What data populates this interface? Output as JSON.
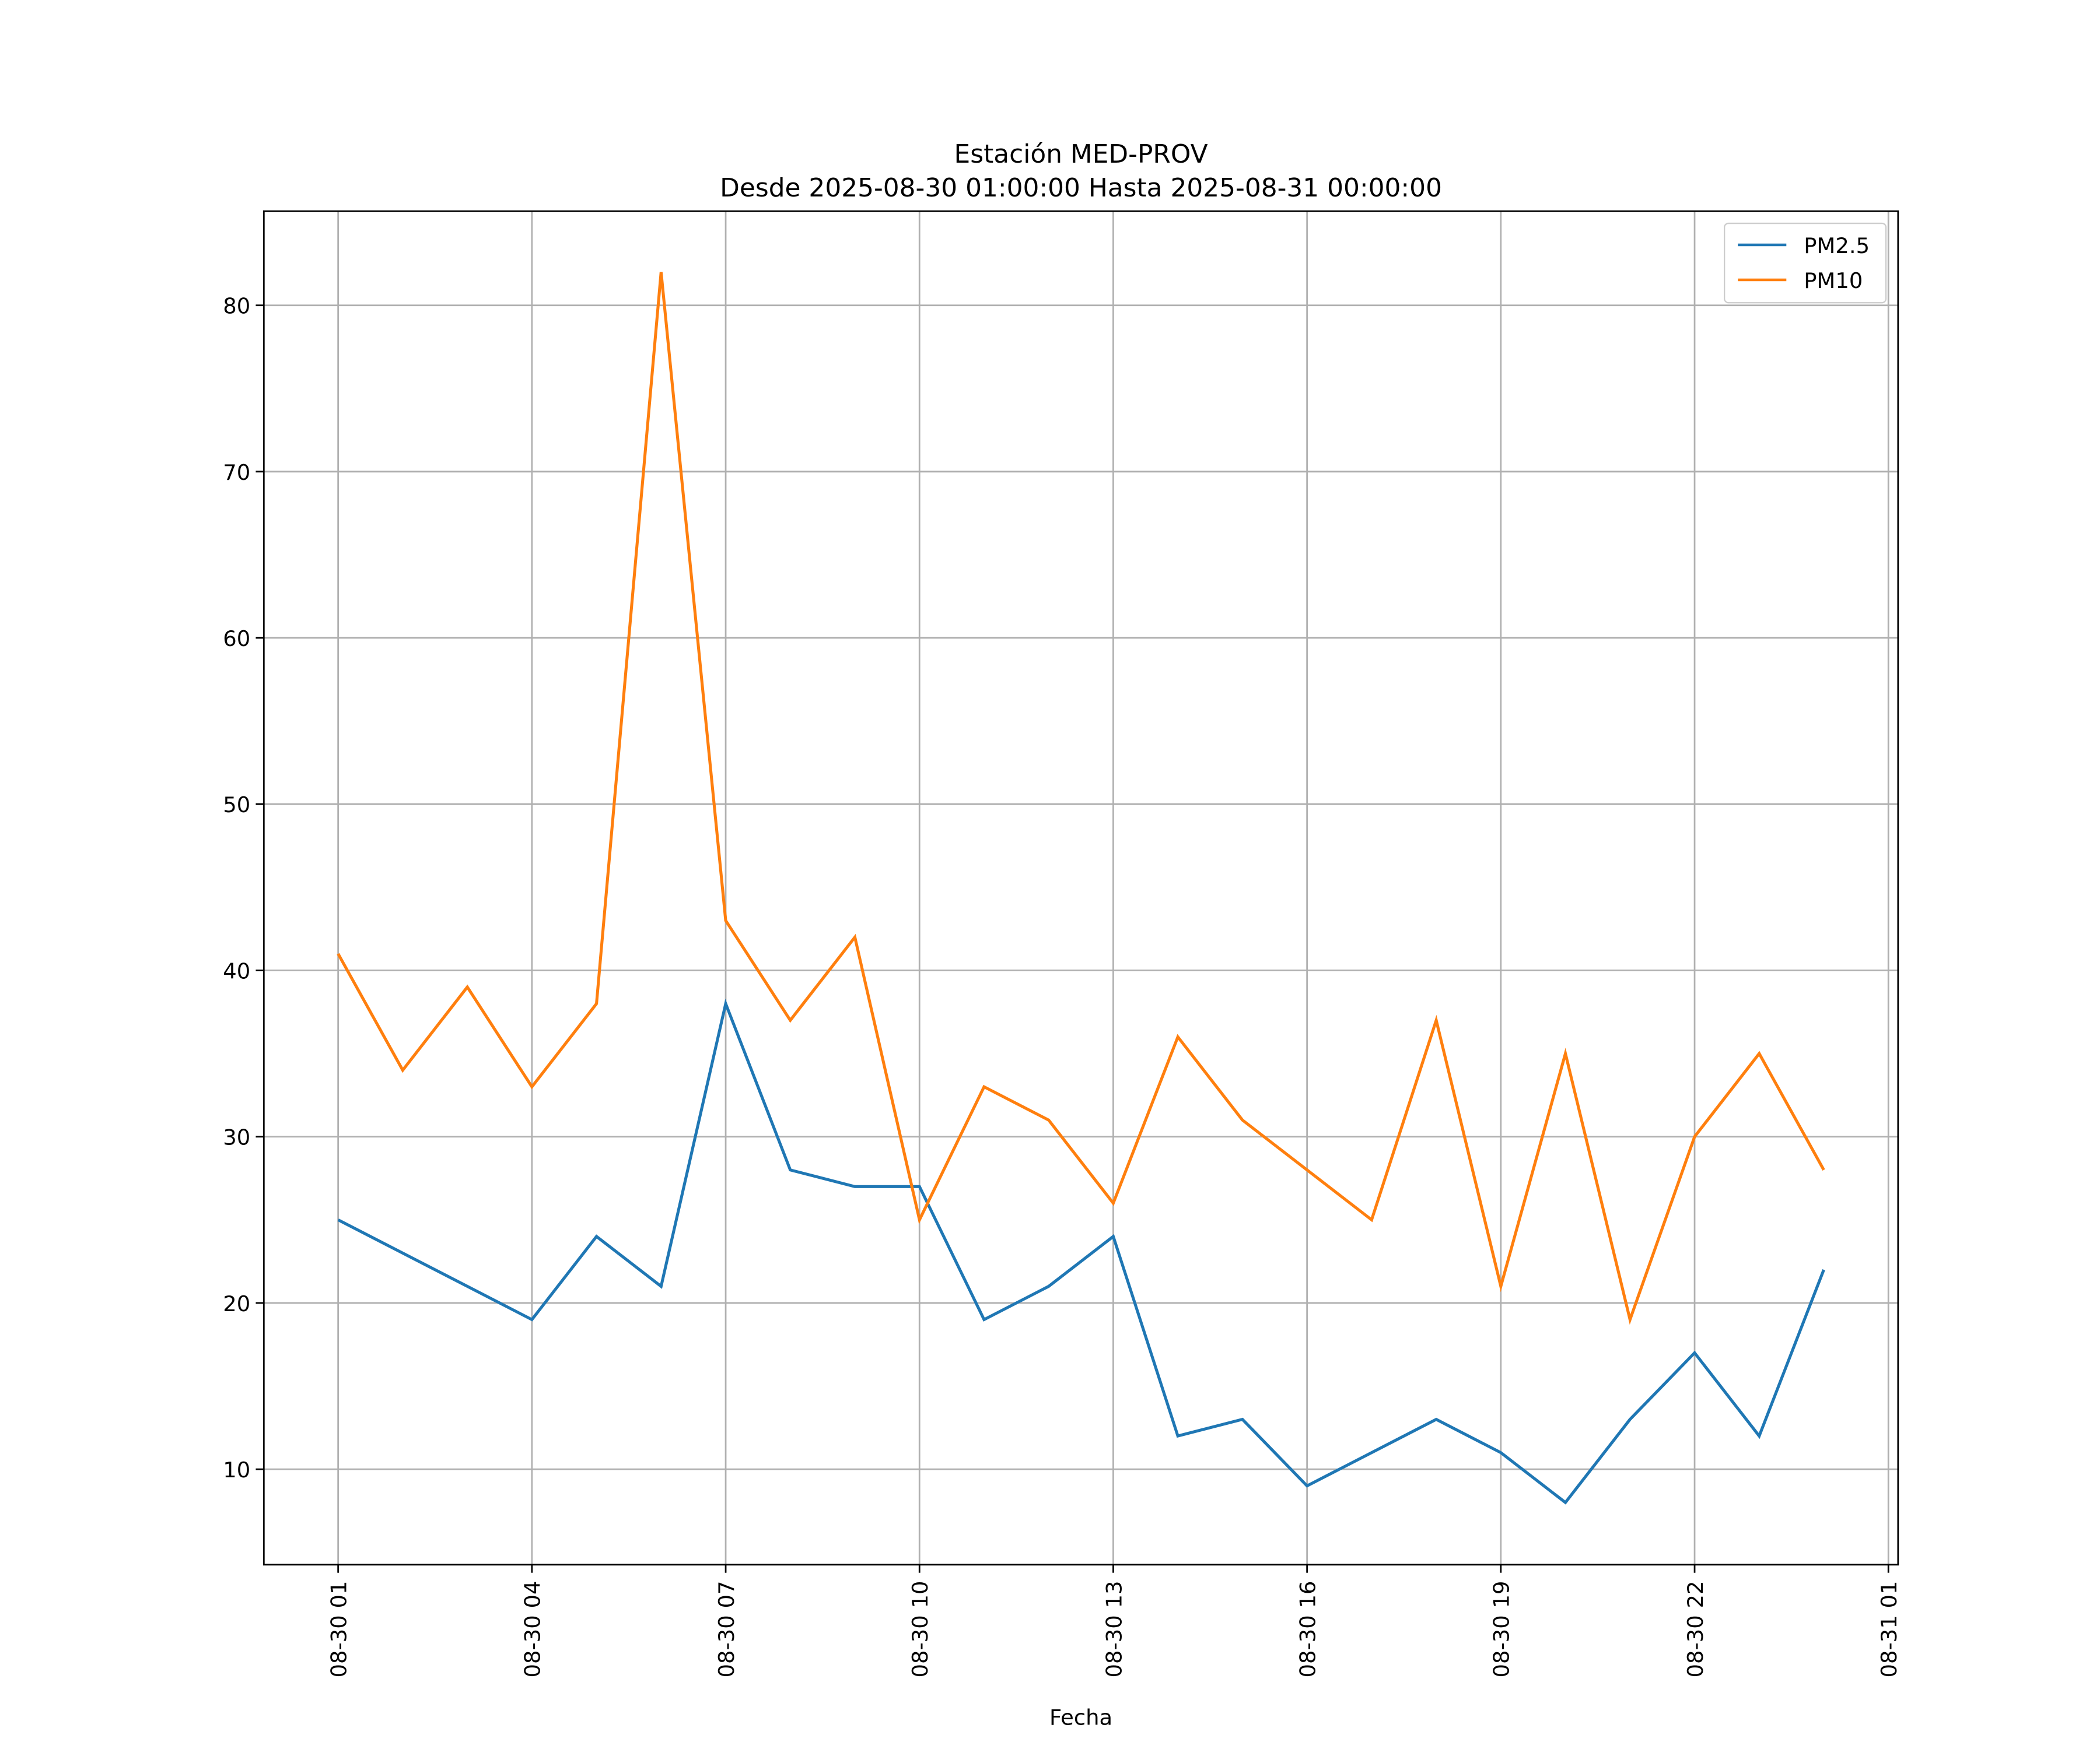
{
  "chart_data": {
    "type": "line",
    "title": "Estación MED-PROV",
    "subtitle": "Desde 2025-08-30 01:00:00 Hasta 2025-08-31 00:00:00",
    "xlabel": "Fecha",
    "ylabel": "",
    "x_hours_from_start": [
      0,
      1,
      2,
      3,
      4,
      5,
      6,
      7,
      8,
      9,
      10,
      11,
      12,
      13,
      14,
      15,
      16,
      17,
      18,
      19,
      20,
      21,
      22,
      23
    ],
    "x_labels_full": [
      "08-30 01",
      "08-30 02",
      "08-30 03",
      "08-30 04",
      "08-30 05",
      "08-30 06",
      "08-30 07",
      "08-30 08",
      "08-30 09",
      "08-30 10",
      "08-30 11",
      "08-30 12",
      "08-30 13",
      "08-30 14",
      "08-30 15",
      "08-30 16",
      "08-30 17",
      "08-30 18",
      "08-30 19",
      "08-30 20",
      "08-30 21",
      "08-30 22",
      "08-30 23",
      "08-31 00"
    ],
    "series": [
      {
        "name": "PM2.5",
        "color": "#1f77b4",
        "values": [
          25,
          23,
          21,
          19,
          24,
          21,
          38,
          28,
          27,
          27,
          19,
          21,
          24,
          12,
          13,
          9,
          11,
          13,
          11,
          8,
          13,
          17,
          12,
          22
        ]
      },
      {
        "name": "PM10",
        "color": "#ff7f0e",
        "values": [
          41,
          34,
          39,
          33,
          38,
          82,
          43,
          37,
          42,
          25,
          33,
          31,
          26,
          36,
          31,
          28,
          25,
          37,
          21,
          35,
          19,
          30,
          35,
          28
        ]
      }
    ],
    "xticks": [
      {
        "h": 0,
        "label": "08-30 01"
      },
      {
        "h": 3,
        "label": "08-30 04"
      },
      {
        "h": 6,
        "label": "08-30 07"
      },
      {
        "h": 9,
        "label": "08-30 10"
      },
      {
        "h": 12,
        "label": "08-30 13"
      },
      {
        "h": 15,
        "label": "08-30 16"
      },
      {
        "h": 18,
        "label": "08-30 19"
      },
      {
        "h": 21,
        "label": "08-30 22"
      },
      {
        "h": 24,
        "label": "08-31 01"
      }
    ],
    "yticks": [
      10,
      20,
      30,
      40,
      50,
      60,
      70,
      80
    ],
    "xlim": [
      -1.15,
      24.15
    ],
    "ylim": [
      4.26,
      85.66
    ],
    "grid": true,
    "legend": "top-right"
  }
}
